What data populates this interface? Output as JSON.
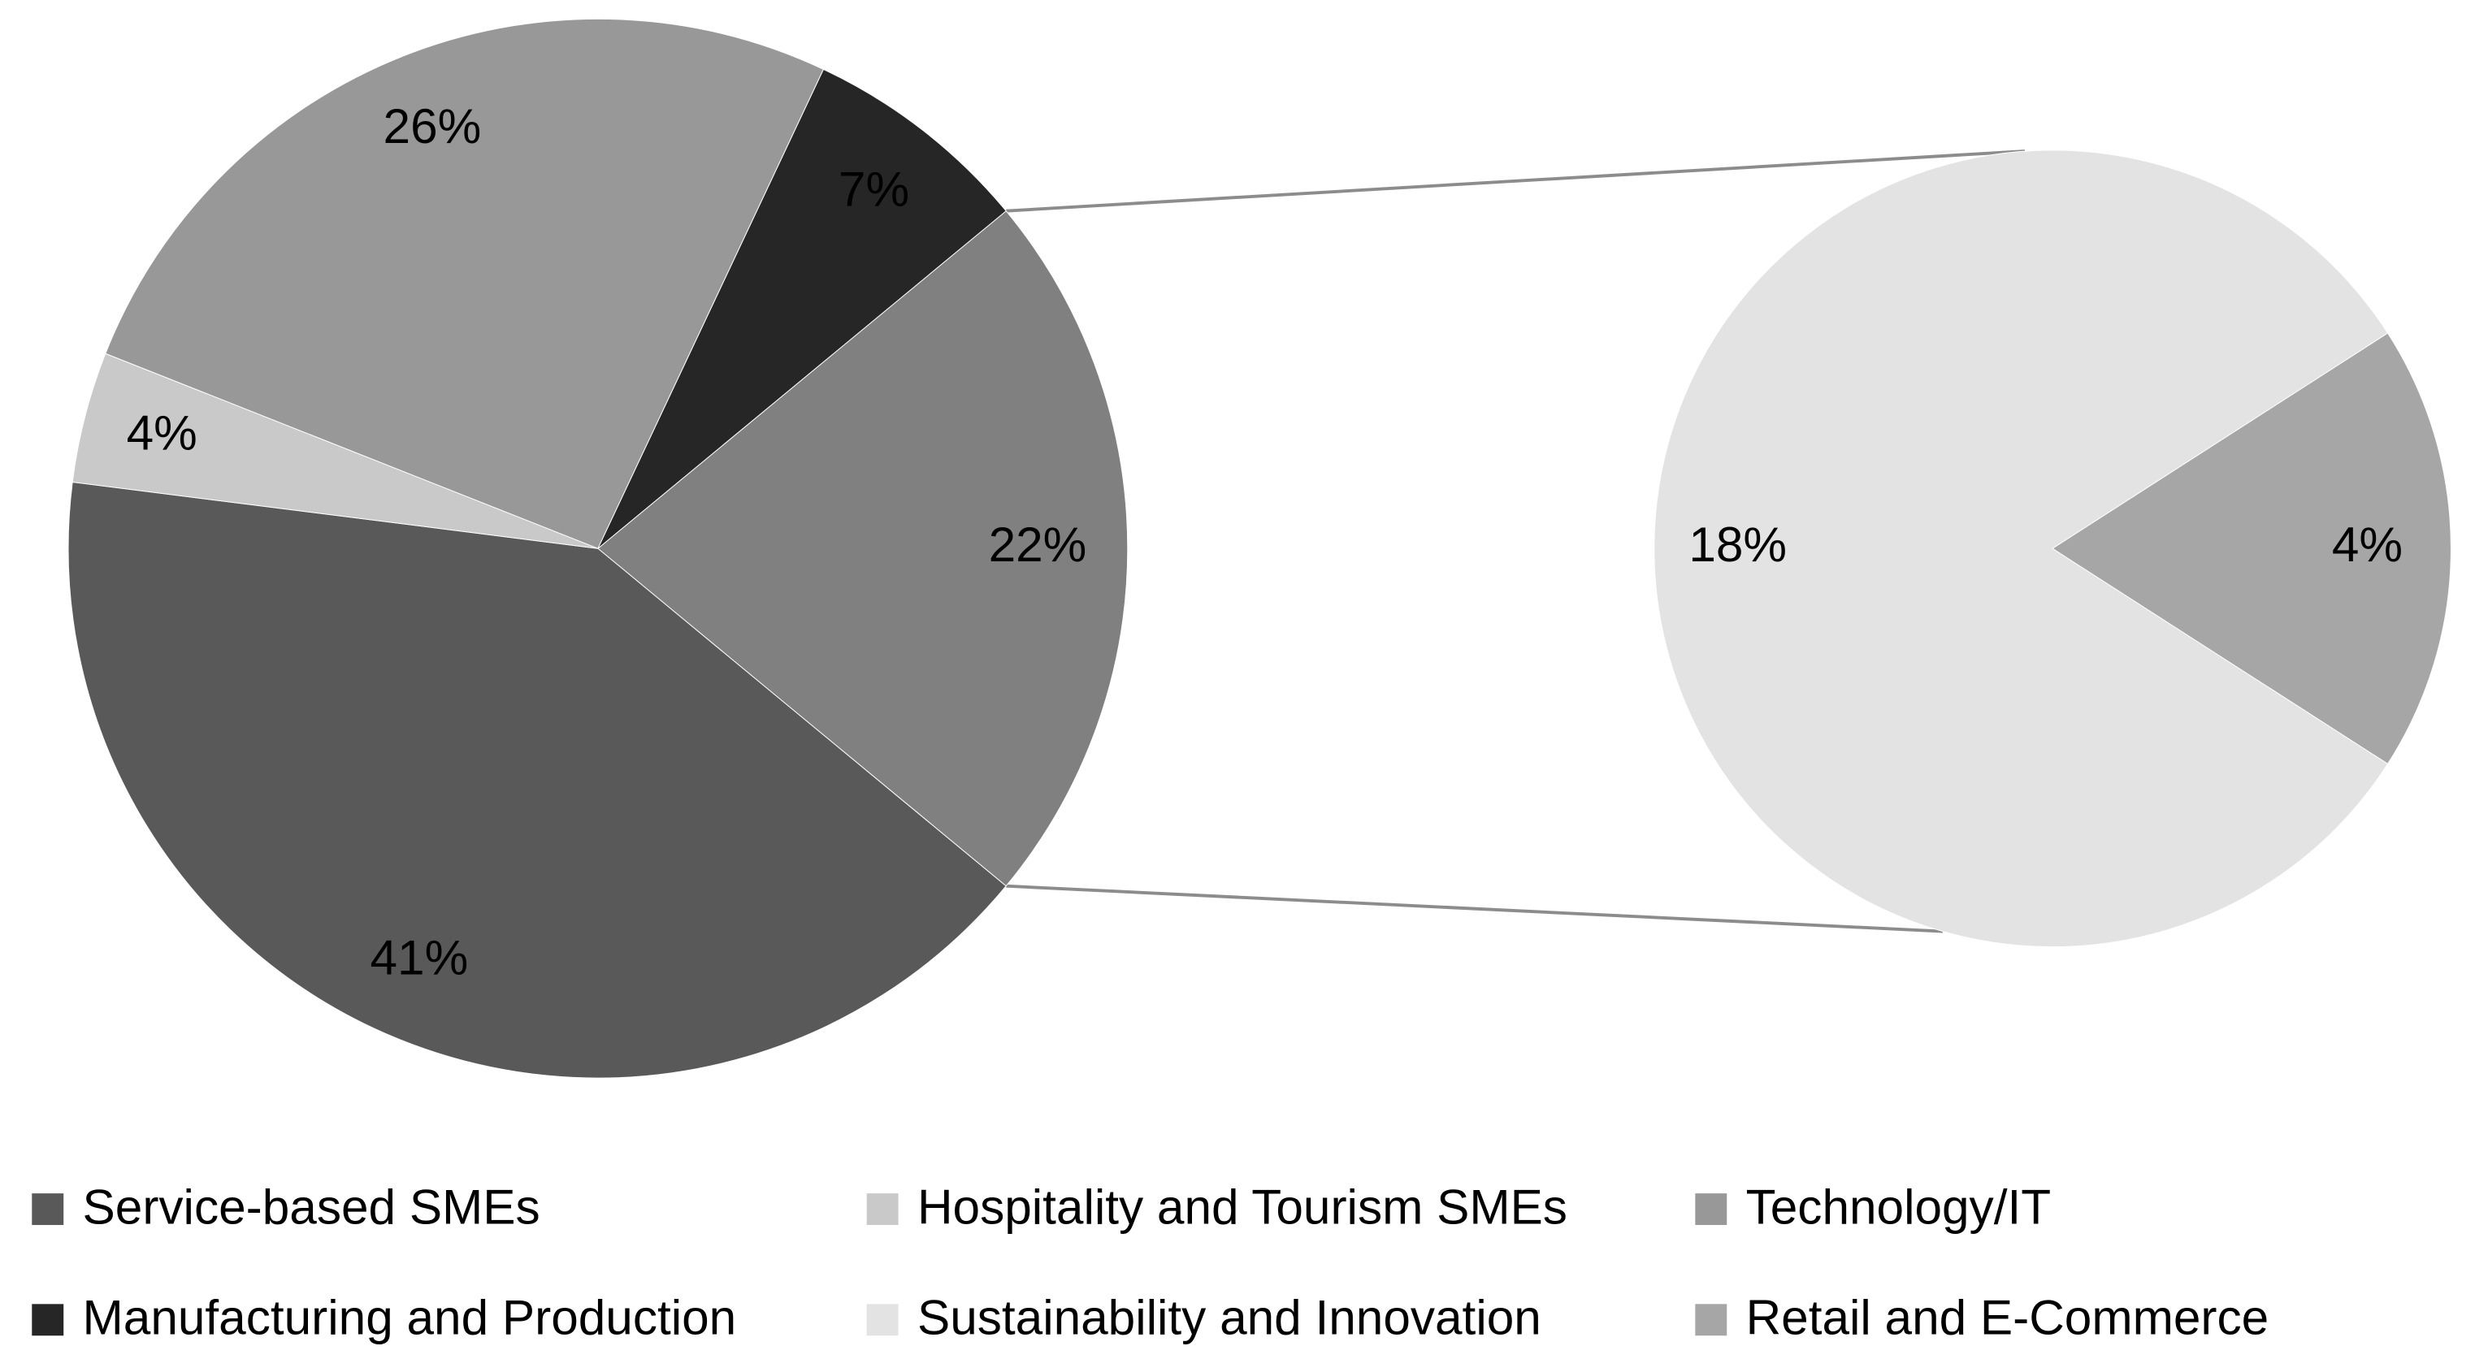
{
  "chart_data": {
    "type": "pie-of-pie",
    "categories": [
      "Service-based SMEs",
      "Hospitality and Tourism SMEs",
      "Technology/IT",
      "Manufacturing and Production",
      "Sustainability and Innovation",
      "Retail and E-Commerce"
    ],
    "colors": [
      "#595959",
      "#c9c9c9",
      "#989898",
      "#262626",
      "#e3e3e3",
      "#a6a6a6"
    ],
    "values": [
      41,
      4,
      26,
      7,
      18,
      4
    ],
    "value_labels": [
      "41%",
      "4%",
      "26%",
      "7%",
      "18%",
      "4%"
    ],
    "secondary_count": 2,
    "other_value": 22,
    "other_label": "22%",
    "other_color": "#808080"
  }
}
